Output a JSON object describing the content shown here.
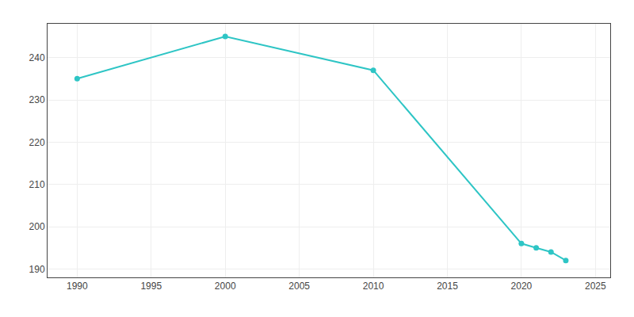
{
  "chart_data": {
    "type": "line",
    "x": [
      1990,
      2000,
      2010,
      2020,
      2021,
      2022,
      2023
    ],
    "values": [
      235,
      245,
      237,
      196,
      195,
      194,
      192
    ],
    "color": "#2ec5c5",
    "marker": "circle",
    "xlim": [
      1988,
      2026
    ],
    "ylim": [
      188,
      248
    ],
    "xticks": [
      1990,
      1995,
      2000,
      2005,
      2010,
      2015,
      2020,
      2025
    ],
    "yticks": [
      190,
      200,
      210,
      220,
      230,
      240
    ],
    "grid": true
  }
}
